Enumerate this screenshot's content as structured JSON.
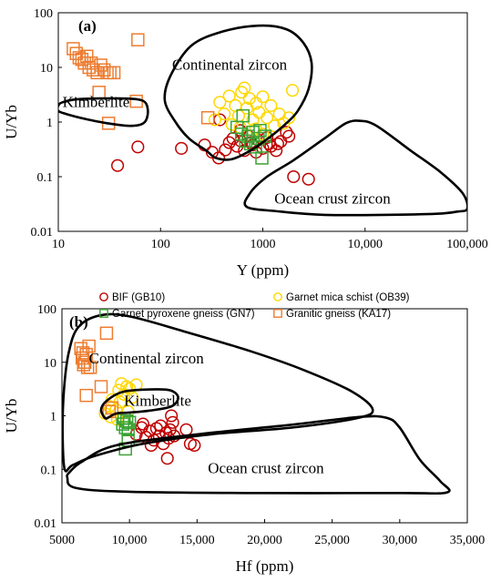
{
  "colors": {
    "BIF (GB10)": "#c00000",
    "Garnet mica schist (OB39)": "#ffd700",
    "Garnet pyroxene gneiss (GN7)": "#3aa335",
    "Granitic gneiss (KA17)": "#ed7d31"
  },
  "legend": [
    {
      "name": "BIF (GB10)",
      "marker": "circle"
    },
    {
      "name": "Garnet mica schist (OB39)",
      "marker": "circle"
    },
    {
      "name": "Garnet pyroxene gneiss (GN7)",
      "marker": "square"
    },
    {
      "name": "Granitic gneiss (KA17)",
      "marker": "square"
    }
  ],
  "chart_data": [
    {
      "type": "scatter",
      "panel_label": "(a)",
      "xlabel": "Y (ppm)",
      "ylabel": "U/Yb",
      "x_scale": "log",
      "y_scale": "log",
      "xlim": [
        10,
        100000
      ],
      "ylim": [
        0.01,
        100
      ],
      "x_ticks": [
        10,
        100,
        1000,
        10000,
        100000
      ],
      "x_tick_labels": [
        "10",
        "100",
        "1000",
        "10,000",
        "100,000"
      ],
      "y_ticks": [
        0.01,
        0.1,
        1,
        10,
        100
      ],
      "y_tick_labels": [
        "0.01",
        "0.1",
        "1",
        "10",
        "100"
      ],
      "regions": [
        {
          "label": "Continental zircon",
          "label_at": [
            130,
            9
          ]
        },
        {
          "label": "Kimberlite",
          "label_at": [
            11,
            1.9
          ]
        },
        {
          "label": "Ocean crust zircon",
          "label_at": [
            1300,
            0.032
          ]
        }
      ],
      "series": [
        {
          "name": "BIF (GB10)",
          "marker": "circle",
          "points": [
            [
              38,
              0.16
            ],
            [
              60,
              0.35
            ],
            [
              160,
              0.33
            ],
            [
              270,
              0.38
            ],
            [
              320,
              0.28
            ],
            [
              370,
              0.22
            ],
            [
              430,
              0.31
            ],
            [
              470,
              0.42
            ],
            [
              510,
              0.5
            ],
            [
              560,
              0.36
            ],
            [
              610,
              0.45
            ],
            [
              660,
              0.3
            ],
            [
              720,
              0.55
            ],
            [
              800,
              0.38
            ],
            [
              900,
              0.47
            ],
            [
              1000,
              0.33
            ],
            [
              1100,
              0.52
            ],
            [
              1200,
              0.36
            ],
            [
              1350,
              0.3
            ],
            [
              1500,
              0.44
            ],
            [
              1700,
              0.65
            ],
            [
              2000,
              0.1
            ],
            [
              2800,
              0.09
            ],
            [
              380,
              1.1
            ],
            [
              600,
              0.7
            ],
            [
              760,
              0.42
            ],
            [
              860,
              0.28
            ],
            [
              1150,
              0.4
            ],
            [
              1400,
              0.4
            ],
            [
              1800,
              0.55
            ]
          ]
        },
        {
          "name": "Garnet mica schist (OB39)",
          "marker": "circle",
          "points": [
            [
              340,
              1.1
            ],
            [
              380,
              2.3
            ],
            [
              420,
              1.4
            ],
            [
              470,
              3.0
            ],
            [
              500,
              0.9
            ],
            [
              540,
              2.0
            ],
            [
              580,
              1.3
            ],
            [
              620,
              3.5
            ],
            [
              660,
              4.2
            ],
            [
              700,
              1.8
            ],
            [
              740,
              2.7
            ],
            [
              800,
              1.1
            ],
            [
              860,
              2.2
            ],
            [
              920,
              1.5
            ],
            [
              1000,
              2.9
            ],
            [
              1100,
              1.2
            ],
            [
              1200,
              2.0
            ],
            [
              1300,
              0.85
            ],
            [
              1450,
              1.4
            ],
            [
              1600,
              0.95
            ],
            [
              1800,
              1.2
            ],
            [
              1950,
              3.8
            ],
            [
              1000,
              0.6
            ],
            [
              850,
              0.75
            ],
            [
              600,
              0.8
            ]
          ]
        },
        {
          "name": "Garnet pyroxene gneiss (GN7)",
          "marker": "square",
          "points": [
            [
              560,
              0.8
            ],
            [
              620,
              0.6
            ],
            [
              680,
              0.45
            ],
            [
              720,
              0.55
            ],
            [
              760,
              0.4
            ],
            [
              800,
              0.65
            ],
            [
              850,
              0.35
            ],
            [
              900,
              0.5
            ],
            [
              940,
              0.7
            ],
            [
              980,
              0.22
            ],
            [
              1050,
              0.55
            ],
            [
              640,
              1.3
            ]
          ]
        },
        {
          "name": "Granitic gneiss (KA17)",
          "marker": "square",
          "points": [
            [
              14,
              22
            ],
            [
              15,
              18
            ],
            [
              16,
              15
            ],
            [
              17,
              14
            ],
            [
              18,
              12
            ],
            [
              19,
              16
            ],
            [
              20,
              10
            ],
            [
              21,
              12
            ],
            [
              22,
              9
            ],
            [
              24,
              8
            ],
            [
              26,
              11
            ],
            [
              28,
              9
            ],
            [
              30,
              8
            ],
            [
              32,
              8
            ],
            [
              35,
              8
            ],
            [
              25,
              3.5
            ],
            [
              31,
              0.95
            ],
            [
              58,
              2.4
            ],
            [
              60,
              32
            ],
            [
              290,
              1.2
            ]
          ]
        }
      ]
    },
    {
      "type": "scatter",
      "panel_label": "(b)",
      "xlabel": "Hf (ppm)",
      "ylabel": "U/Yb",
      "x_scale": "linear",
      "y_scale": "log",
      "xlim": [
        5000,
        35000
      ],
      "ylim": [
        0.01,
        100
      ],
      "x_ticks": [
        5000,
        10000,
        15000,
        20000,
        25000,
        30000,
        35000
      ],
      "x_tick_labels": [
        "5000",
        "10,000",
        "15,000",
        "20,000",
        "25,000",
        "30,000",
        "35,000"
      ],
      "y_ticks": [
        0.01,
        0.1,
        1,
        10,
        100
      ],
      "y_tick_labels": [
        "0.01",
        "0.1",
        "1",
        "10",
        "100"
      ],
      "regions": [
        {
          "label": "Continental zircon",
          "label_at": [
            7000,
            9.5
          ]
        },
        {
          "label": "Kimberlite",
          "label_at": [
            9600,
            1.55
          ]
        },
        {
          "label": "Ocean crust zircon",
          "label_at": [
            15800,
            0.085
          ]
        }
      ],
      "series": [
        {
          "name": "BIF (GB10)",
          "marker": "circle",
          "points": [
            [
              10500,
              0.45
            ],
            [
              10900,
              0.6
            ],
            [
              11200,
              0.4
            ],
            [
              11500,
              0.52
            ],
            [
              11800,
              0.35
            ],
            [
              12000,
              0.58
            ],
            [
              12200,
              0.42
            ],
            [
              12500,
              0.3
            ],
            [
              12700,
              0.48
            ],
            [
              12900,
              0.38
            ],
            [
              13000,
              0.55
            ],
            [
              13100,
              1.0
            ],
            [
              13200,
              0.75
            ],
            [
              12800,
              0.16
            ],
            [
              14500,
              0.3
            ],
            [
              14800,
              0.28
            ],
            [
              14200,
              0.55
            ],
            [
              11000,
              0.7
            ],
            [
              12300,
              0.65
            ],
            [
              11600,
              0.28
            ],
            [
              13300,
              0.42
            ]
          ]
        },
        {
          "name": "Garnet mica schist (OB39)",
          "marker": "circle",
          "points": [
            [
              8200,
              1.1
            ],
            [
              8500,
              1.5
            ],
            [
              8700,
              2.0
            ],
            [
              9000,
              1.3
            ],
            [
              9200,
              3.0
            ],
            [
              9400,
              4.0
            ],
            [
              9600,
              2.5
            ],
            [
              9800,
              3.5
            ],
            [
              10000,
              3.2
            ],
            [
              10200,
              2.2
            ],
            [
              10500,
              3.8
            ],
            [
              9100,
              0.85
            ],
            [
              8600,
              0.95
            ],
            [
              9300,
              1.8
            ],
            [
              9900,
              1.2
            ]
          ]
        },
        {
          "name": "Garnet pyroxene gneiss (GN7)",
          "marker": "square",
          "points": [
            [
              9500,
              0.7
            ],
            [
              9600,
              0.9
            ],
            [
              9700,
              0.6
            ],
            [
              9800,
              0.8
            ],
            [
              9900,
              0.55
            ],
            [
              10000,
              0.75
            ],
            [
              9700,
              0.24
            ],
            [
              9900,
              0.35
            ]
          ]
        },
        {
          "name": "Granitic gneiss (KA17)",
          "marker": "square",
          "points": [
            [
              6400,
              18
            ],
            [
              6500,
              12
            ],
            [
              6550,
              15
            ],
            [
              6600,
              9
            ],
            [
              6700,
              10
            ],
            [
              6800,
              14
            ],
            [
              6900,
              8
            ],
            [
              7000,
              20
            ],
            [
              7100,
              8
            ],
            [
              8300,
              35
            ],
            [
              8500,
              1.2
            ],
            [
              8700,
              1.4
            ],
            [
              6800,
              2.4
            ],
            [
              7900,
              3.5
            ]
          ]
        }
      ]
    }
  ]
}
